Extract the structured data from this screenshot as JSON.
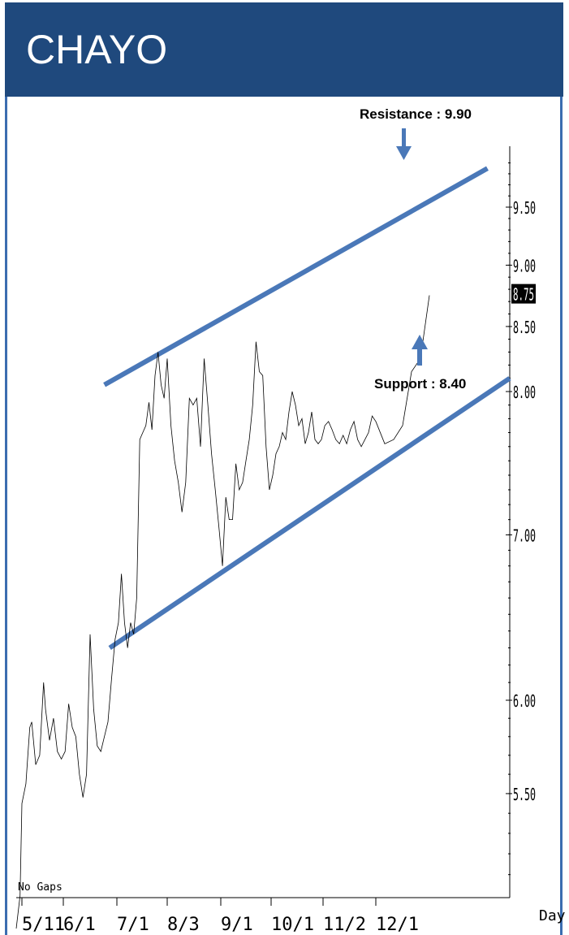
{
  "header": {
    "title": "CHAYO"
  },
  "colors": {
    "header_bg": "#1f497d",
    "channel": "#4a78b8",
    "price_line": "#000000",
    "last_price_bg": "#000000"
  },
  "chart_data": {
    "type": "line",
    "xlabel": "Day",
    "x_ticks": [
      "5/11",
      "6/1",
      "7/1",
      "8/3",
      "9/1",
      "10/1",
      "11/2",
      "12/1"
    ],
    "y_ticks": [
      "5.50",
      "6.00",
      "7.00",
      "8.00",
      "8.50",
      "9.00",
      "9.50"
    ],
    "y_scale": "log",
    "last_price": "8.75",
    "note": "No Gaps",
    "annotations": {
      "resistance": "Resistance : 9.90",
      "support": "Support : 8.40"
    },
    "channel": {
      "upper": [
        {
          "x": "6/24",
          "y": 8.05
        },
        {
          "x": "12/26",
          "y": 9.85
        }
      ],
      "lower": [
        {
          "x": "6/27",
          "y": 6.3
        },
        {
          "x": "12/31",
          "y": 8.1
        }
      ]
    },
    "series": [
      {
        "values": [
          [
            "5/8",
            4.85
          ],
          [
            "5/10",
            5.0
          ],
          [
            "5/11",
            5.45
          ],
          [
            "5/13",
            5.55
          ],
          [
            "5/14",
            5.7
          ],
          [
            "5/15",
            5.85
          ],
          [
            "5/16",
            5.88
          ],
          [
            "5/18",
            5.65
          ],
          [
            "5/20",
            5.7
          ],
          [
            "5/22",
            6.1
          ],
          [
            "5/23",
            5.95
          ],
          [
            "5/25",
            5.78
          ],
          [
            "5/27",
            5.9
          ],
          [
            "5/29",
            5.72
          ],
          [
            "5/31",
            5.68
          ],
          [
            "6/2",
            5.72
          ],
          [
            "6/4",
            5.98
          ],
          [
            "6/6",
            5.85
          ],
          [
            "6/8",
            5.8
          ],
          [
            "6/10",
            5.6
          ],
          [
            "6/12",
            5.48
          ],
          [
            "6/14",
            5.6
          ],
          [
            "6/16",
            6.38
          ],
          [
            "6/18",
            5.95
          ],
          [
            "6/20",
            5.75
          ],
          [
            "6/22",
            5.72
          ],
          [
            "6/24",
            5.8
          ],
          [
            "6/26",
            5.88
          ],
          [
            "6/28",
            6.12
          ],
          [
            "6/30",
            6.35
          ],
          [
            "7/2",
            6.45
          ],
          [
            "7/4",
            6.75
          ],
          [
            "7/6",
            6.45
          ],
          [
            "7/8",
            6.3
          ],
          [
            "7/10",
            6.45
          ],
          [
            "7/12",
            6.38
          ],
          [
            "7/14",
            6.6
          ],
          [
            "7/16",
            7.65
          ],
          [
            "7/18",
            7.7
          ],
          [
            "7/20",
            7.75
          ],
          [
            "7/22",
            7.92
          ],
          [
            "7/24",
            7.72
          ],
          [
            "7/26",
            8.12
          ],
          [
            "7/28",
            8.3
          ],
          [
            "7/30",
            8.05
          ],
          [
            "8/1",
            7.95
          ],
          [
            "8/3",
            8.25
          ],
          [
            "8/5",
            7.75
          ],
          [
            "8/7",
            7.5
          ],
          [
            "8/9",
            7.35
          ],
          [
            "8/11",
            7.15
          ],
          [
            "8/13",
            7.35
          ],
          [
            "8/15",
            7.95
          ],
          [
            "8/17",
            7.9
          ],
          [
            "8/19",
            7.95
          ],
          [
            "8/21",
            7.6
          ],
          [
            "8/23",
            8.25
          ],
          [
            "8/25",
            7.9
          ],
          [
            "8/27",
            7.55
          ],
          [
            "8/29",
            7.3
          ],
          [
            "8/31",
            7.05
          ],
          [
            "9/2",
            6.8
          ],
          [
            "9/4",
            7.25
          ],
          [
            "9/6",
            7.1
          ],
          [
            "9/8",
            7.1
          ],
          [
            "9/10",
            7.48
          ],
          [
            "9/12",
            7.3
          ],
          [
            "9/14",
            7.35
          ],
          [
            "9/16",
            7.5
          ],
          [
            "9/18",
            7.65
          ],
          [
            "9/20",
            7.9
          ],
          [
            "9/22",
            8.38
          ],
          [
            "9/24",
            8.15
          ],
          [
            "9/26",
            8.12
          ],
          [
            "9/28",
            7.6
          ],
          [
            "9/30",
            7.3
          ],
          [
            "10/2",
            7.4
          ],
          [
            "10/4",
            7.55
          ],
          [
            "10/6",
            7.6
          ],
          [
            "10/8",
            7.7
          ],
          [
            "10/10",
            7.65
          ],
          [
            "10/12",
            7.85
          ],
          [
            "10/14",
            8.0
          ],
          [
            "10/16",
            7.9
          ],
          [
            "10/18",
            7.75
          ],
          [
            "10/20",
            7.8
          ],
          [
            "10/22",
            7.62
          ],
          [
            "10/24",
            7.7
          ],
          [
            "10/26",
            7.85
          ],
          [
            "10/28",
            7.65
          ],
          [
            "10/30",
            7.62
          ],
          [
            "11/1",
            7.65
          ],
          [
            "11/3",
            7.75
          ],
          [
            "11/5",
            7.78
          ],
          [
            "11/7",
            7.72
          ],
          [
            "11/9",
            7.65
          ],
          [
            "11/11",
            7.62
          ],
          [
            "11/13",
            7.68
          ],
          [
            "11/15",
            7.62
          ],
          [
            "11/17",
            7.72
          ],
          [
            "11/19",
            7.78
          ],
          [
            "11/21",
            7.65
          ],
          [
            "11/23",
            7.6
          ],
          [
            "11/25",
            7.65
          ],
          [
            "11/27",
            7.7
          ],
          [
            "11/29",
            7.82
          ],
          [
            "12/1",
            7.78
          ],
          [
            "12/3",
            7.62
          ],
          [
            "12/5",
            7.65
          ],
          [
            "12/7",
            7.75
          ],
          [
            "12/9",
            8.15
          ],
          [
            "12/11",
            8.25
          ],
          [
            "12/13",
            8.75
          ]
        ]
      }
    ]
  }
}
